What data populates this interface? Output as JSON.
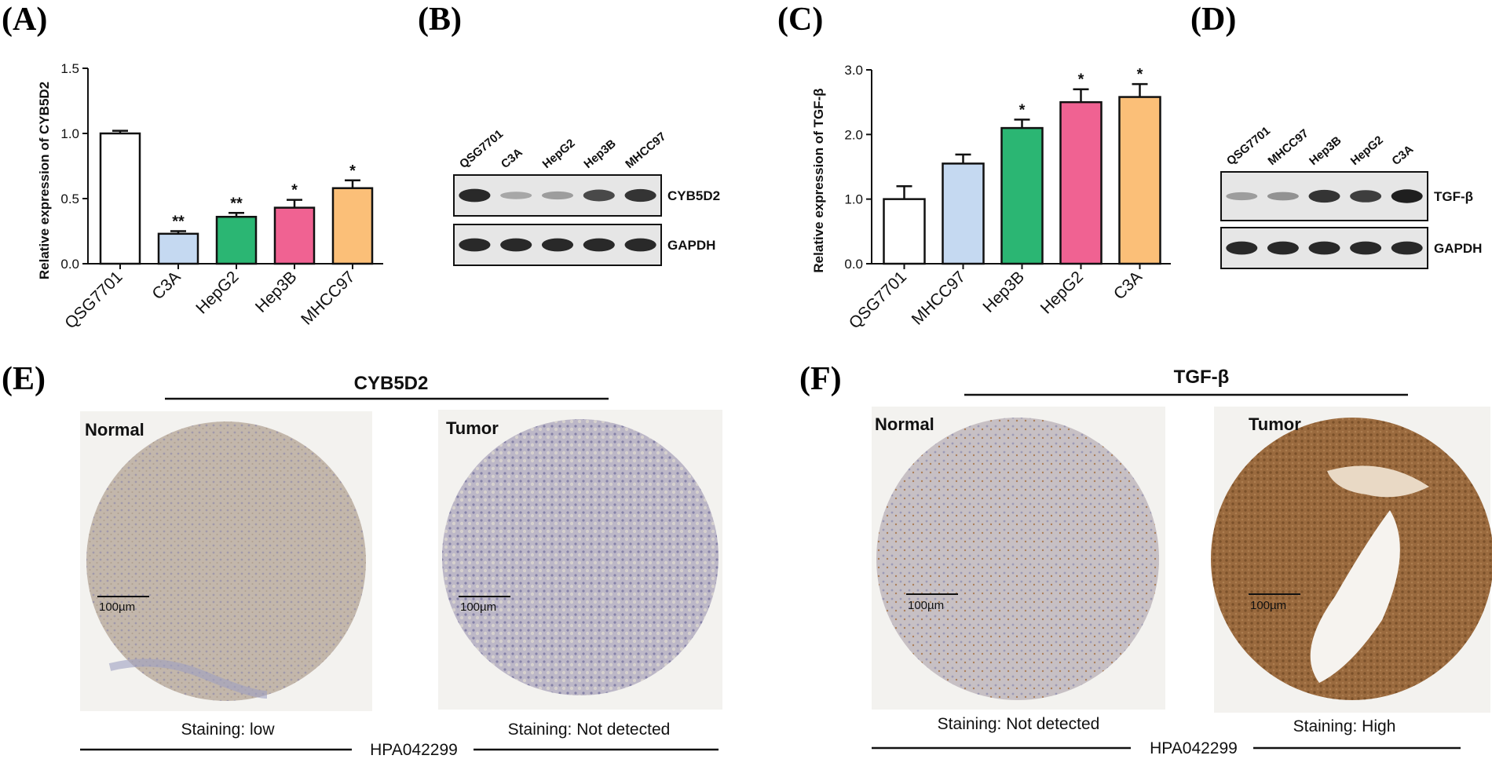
{
  "panels": {
    "A": {
      "label": "(A)"
    },
    "B": {
      "label": "(B)",
      "lanes": [
        "QSG7701",
        "C3A",
        "HepG2",
        "Hep3B",
        "MHCC97"
      ],
      "blots": [
        "CYB5D2",
        "GAPDH"
      ],
      "band_intensity": [
        [
          0.9,
          0.3,
          0.35,
          0.75,
          0.85
        ],
        [
          0.9,
          0.9,
          0.9,
          0.9,
          0.9
        ]
      ]
    },
    "C": {
      "label": "(C)"
    },
    "D": {
      "label": "(D)",
      "lanes": [
        "QSG7701",
        "MHCC97",
        "Hep3B",
        "HepG2",
        "C3A"
      ],
      "blots": [
        "TGF-β",
        "GAPDH"
      ],
      "band_intensity": [
        [
          0.35,
          0.4,
          0.85,
          0.8,
          0.95
        ],
        [
          0.9,
          0.9,
          0.9,
          0.9,
          0.9
        ]
      ]
    },
    "E": {
      "label": "(E)",
      "title": "CYB5D2",
      "antibody": "HPA042299",
      "left": {
        "corner": "Normal",
        "caption": "Staining: low",
        "scale": "100µm"
      },
      "right": {
        "corner": "Tumor",
        "caption": "Staining: Not detected",
        "scale": "100µm"
      }
    },
    "F": {
      "label": "(F)",
      "title": "TGF-β",
      "antibody": "HPA042299",
      "left": {
        "corner": "Normal",
        "caption": "Staining: Not detected",
        "scale": "100µm"
      },
      "right": {
        "corner": "Tumor",
        "caption": "Staining: High",
        "scale": "100µm"
      }
    }
  },
  "colors": {
    "bars": [
      "#ffffff",
      "#c5d9f1",
      "#2bb673",
      "#f06292",
      "#fbbf78"
    ],
    "tissue_normal": "#c9bfb3",
    "tissue_brown": "#9a6a3e"
  },
  "chart_data": [
    {
      "type": "bar",
      "panel": "A",
      "title": "",
      "categories": [
        "QSG7701",
        "C3A",
        "HepG2",
        "Hep3B",
        "MHCC97"
      ],
      "values": [
        1.0,
        0.23,
        0.36,
        0.43,
        0.58
      ],
      "errors": [
        0.02,
        0.02,
        0.03,
        0.06,
        0.06
      ],
      "significance": [
        "",
        "**",
        "**",
        "*",
        "*"
      ],
      "xlabel": "",
      "ylabel": "Relative expression of CYB5D2",
      "ylim": [
        0,
        1.5
      ],
      "yticks": [
        "0.0",
        "0.5",
        "1.0",
        "1.5"
      ],
      "grid": false
    },
    {
      "type": "bar",
      "panel": "C",
      "title": "",
      "categories": [
        "QSG7701",
        "MHCC97",
        "Hep3B",
        "HepG2",
        "C3A"
      ],
      "values": [
        1.0,
        1.55,
        2.1,
        2.5,
        2.58
      ],
      "errors": [
        0.2,
        0.14,
        0.13,
        0.2,
        0.2
      ],
      "significance": [
        "",
        "",
        "*",
        "*",
        "*"
      ],
      "xlabel": "",
      "ylabel": "Relative expression of TGF-β",
      "ylim": [
        0,
        3.0
      ],
      "yticks": [
        "0.0",
        "1.0",
        "2.0",
        "3.0"
      ],
      "grid": false
    }
  ]
}
